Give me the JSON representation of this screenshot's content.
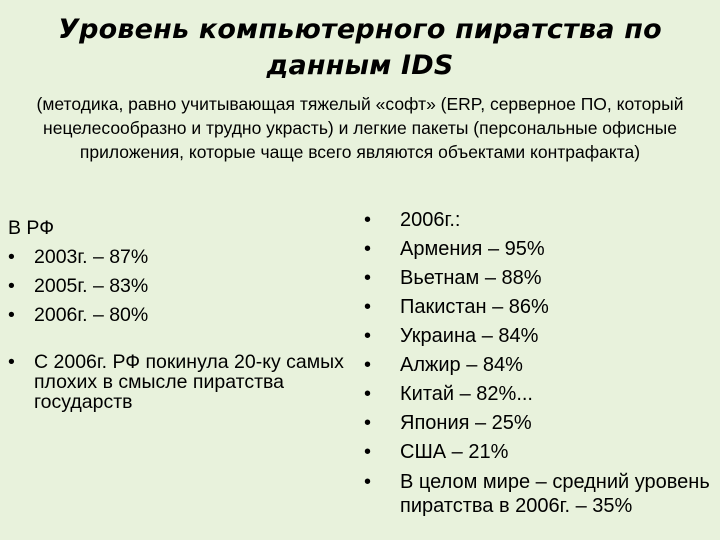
{
  "slide": {
    "title": "Уровень компьютерного пиратства по данным IDS",
    "subtitle": "(методика, равно учитывающая тяжелый «софт» (ERP, серверное ПО, который нецелесообразно и трудно украсть) и легкие пакеты (персональные офисные приложения, которые чаще всего являются объектами контрафакта)",
    "bullet_symbol": "•",
    "left": {
      "heading": "В РФ",
      "items": [
        "2003г. – 87%",
        "2005г. – 83%",
        "2006г. – 80%"
      ],
      "note": "С 2006г. РФ покинула 20-ку самых плохих в смысле пиратства государств"
    },
    "right": {
      "items": [
        "2006г.:",
        "Армения – 95%",
        "Вьетнам – 88%",
        "Пакистан – 86%",
        "Украина – 84%",
        "Алжир – 84%",
        "Китай – 82%...",
        "Япония – 25%",
        "США – 21%",
        "В целом мире – средний уровень пиратства в 2006г. – 35%"
      ]
    },
    "colors": {
      "background": "#e8f2dc",
      "text": "#000000"
    }
  }
}
